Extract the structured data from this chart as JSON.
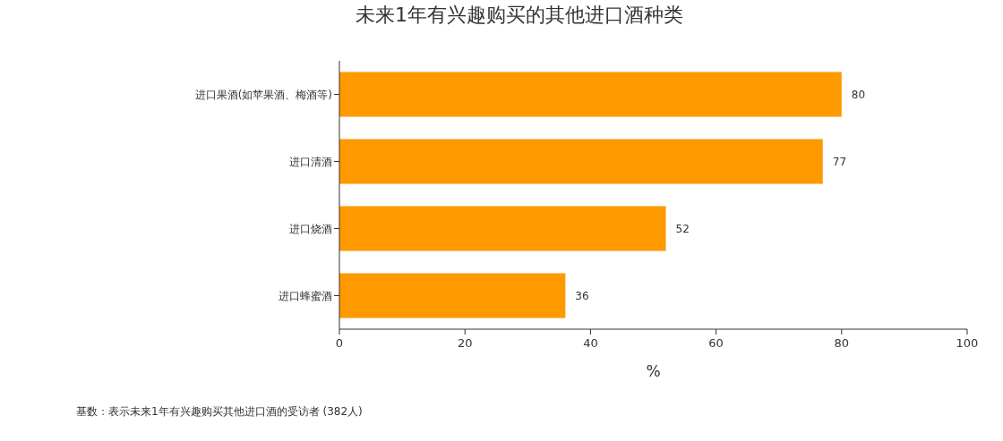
{
  "chart_data": {
    "type": "bar",
    "orientation": "horizontal",
    "title": "未来1年有兴趣购买的其他进口酒种类",
    "categories": [
      "进口果酒(如苹果酒、梅酒等)",
      "进口清酒",
      "进口烧酒",
      "进口蜂蜜酒"
    ],
    "values": [
      80,
      77,
      52,
      36
    ],
    "color": "#ff9900",
    "xlim": [
      0,
      100
    ],
    "xticks": [
      0,
      20,
      40,
      60,
      80,
      100
    ],
    "xlabel": "%",
    "data_labels": true,
    "annotations": [
      "基数：表示未来1年有兴趣购买其他进口酒的受访者 (382人)"
    ]
  }
}
